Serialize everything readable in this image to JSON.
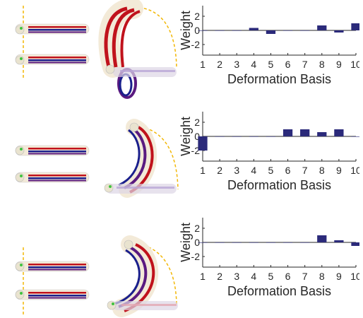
{
  "chart_data": [
    {
      "type": "bar",
      "categories": [
        "1",
        "2",
        "3",
        "4",
        "5",
        "6",
        "7",
        "8",
        "9",
        "10"
      ],
      "values": [
        0,
        0,
        0,
        0.35,
        -0.5,
        0,
        0,
        0.7,
        -0.3,
        1.0
      ],
      "xlabel": "Deformation Basis",
      "ylabel": "Weight",
      "ylim": [
        -3.5,
        3.5
      ],
      "yticks": [
        2,
        0,
        -2
      ],
      "yticklabels": [
        "2",
        "0",
        "-2"
      ],
      "bar_color": "#2b2a7a"
    },
    {
      "type": "bar",
      "categories": [
        "1",
        "2",
        "3",
        "4",
        "5",
        "6",
        "7",
        "8",
        "9",
        "10"
      ],
      "values": [
        -2.0,
        0,
        0,
        0,
        0,
        1.0,
        1.0,
        0.6,
        1.0,
        0
      ],
      "xlabel": "Deformation Basis",
      "ylabel": "Weight",
      "ylim": [
        -3.5,
        3.5
      ],
      "yticks": [
        2,
        0,
        -2
      ],
      "yticklabels": [
        "2",
        "0",
        "-2"
      ],
      "bar_color": "#2b2a7a"
    },
    {
      "type": "bar",
      "categories": [
        "1",
        "2",
        "3",
        "4",
        "5",
        "6",
        "7",
        "8",
        "9",
        "10"
      ],
      "values": [
        0,
        0,
        0,
        0,
        0,
        0,
        0,
        1.0,
        0.3,
        -0.5
      ],
      "xlabel": "Deformation Basis",
      "ylabel": "Weight",
      "ylim": [
        -3.5,
        3.5
      ],
      "yticks": [
        2,
        0,
        -2
      ],
      "yticklabels": [
        "2",
        "0",
        "-2"
      ],
      "bar_color": "#2b2a7a"
    }
  ],
  "figure": {
    "stripe_red": "#c0121c",
    "stripe_blue": "#1a1f8c",
    "stripe_purple": "#5a1a80",
    "tube_cream": "#f3ead8",
    "guide_yellow": "#f2b705",
    "marker_green": "#3fc23f"
  }
}
